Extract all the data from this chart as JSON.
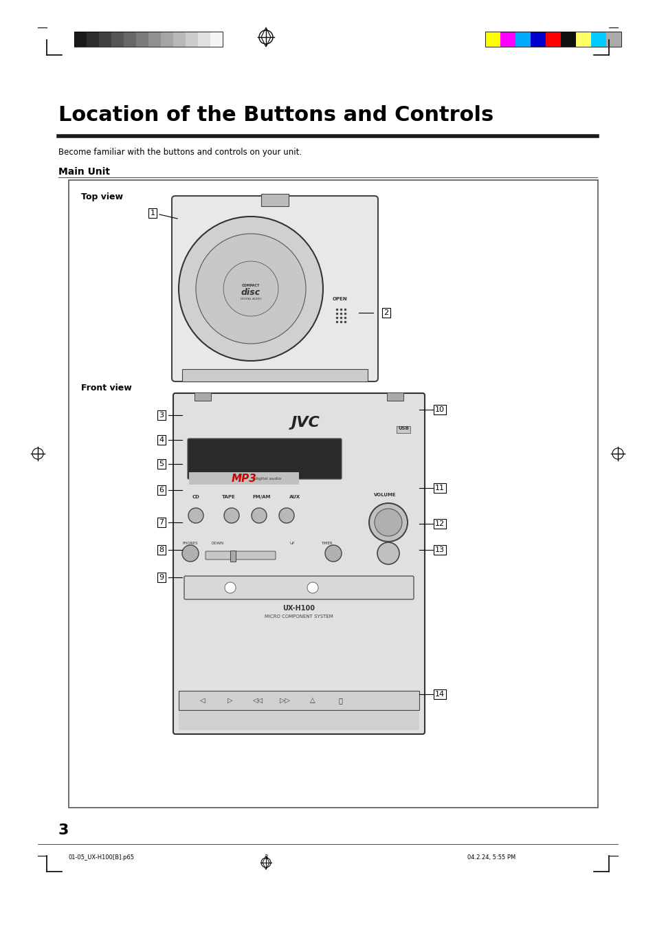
{
  "title": "Location of the Buttons and Controls",
  "subtitle": "Become familiar with the buttons and controls on your unit.",
  "section_title": "Main Unit",
  "top_view_label": "Top view",
  "front_view_label": "Front view",
  "page_number": "3",
  "footer_left": "01-05_UX-H100[B].p65",
  "footer_center": "3",
  "footer_right": "04.2.24, 5:55 PM",
  "bg_color": "#ffffff",
  "text_color": "#000000",
  "gray_colors_top": [
    "#1a1a1a",
    "#2d2d2d",
    "#404040",
    "#555555",
    "#686868",
    "#7c7c7c",
    "#909090",
    "#a5a5a5",
    "#b8b8b8",
    "#cccccc",
    "#e0e0e0",
    "#f5f5f5"
  ],
  "color_bars_top": [
    "#ffff00",
    "#ff00ff",
    "#00aaff",
    "#0000cc",
    "#ff0000",
    "#111111",
    "#ffff66",
    "#00ccff",
    "#aaaaaa"
  ],
  "label_numbers_top": [
    "1",
    "2"
  ],
  "label_numbers_front": [
    "3",
    "4",
    "5",
    "6",
    "7",
    "8",
    "9",
    "10",
    "11",
    "12",
    "13",
    "14"
  ]
}
